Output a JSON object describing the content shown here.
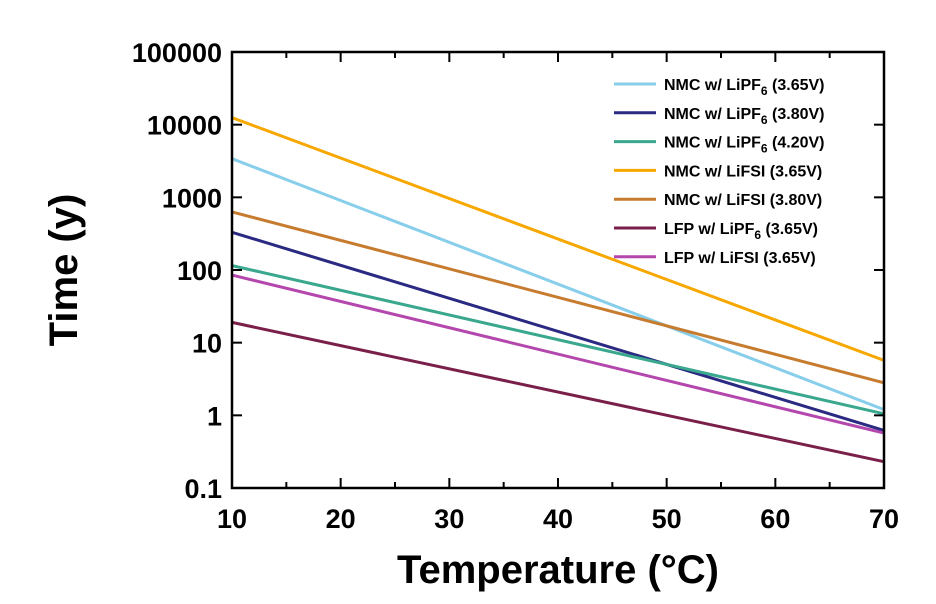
{
  "chart_data": {
    "type": "line",
    "xlabel": "Temperature (°C)",
    "ylabel": "Time (y)",
    "xlim": [
      10,
      70
    ],
    "ylim": [
      0.1,
      100000
    ],
    "yscale": "log",
    "grid": false,
    "legend_position": "top-right",
    "x_ticks": [
      "10",
      "20",
      "30",
      "40",
      "50",
      "60",
      "70"
    ],
    "y_ticks": [
      "0.1",
      "1",
      "10",
      "100",
      "1000",
      "10000",
      "100000"
    ],
    "series": [
      {
        "name": "NMC w/ LiPF6 (3.65V)",
        "label_main": "NMC w/ LiPF",
        "label_sub": "6",
        "label_tail": " (3.65V)",
        "color": "#87ceeb",
        "x": [
          10,
          70
        ],
        "y": [
          3400,
          1.2
        ]
      },
      {
        "name": "NMC w/ LiPF6 (3.80V)",
        "label_main": "NMC w/ LiPF",
        "label_sub": "6",
        "label_tail": " (3.80V)",
        "color": "#2b2a83",
        "x": [
          10,
          70
        ],
        "y": [
          330,
          0.62
        ]
      },
      {
        "name": "NMC w/ LiPF6 (4.20V)",
        "label_main": "NMC w/ LiPF",
        "label_sub": "6",
        "label_tail": " (4.20V)",
        "color": "#3aa88e",
        "x": [
          10,
          70
        ],
        "y": [
          115,
          1.05
        ]
      },
      {
        "name": "NMC w/ LiFSI (3.65V)",
        "label_main": "NMC w/ LiFSI (3.65V)",
        "label_sub": "",
        "label_tail": "",
        "color": "#f7a800",
        "x": [
          10,
          70
        ],
        "y": [
          12500,
          5.7
        ]
      },
      {
        "name": "NMC w/ LiFSI (3.80V)",
        "label_main": "NMC w/ LiFSI (3.80V)",
        "label_sub": "",
        "label_tail": "",
        "color": "#c77b2e",
        "x": [
          10,
          70
        ],
        "y": [
          630,
          2.8
        ]
      },
      {
        "name": "LFP w/ LiPF6 (3.65V)",
        "label_main": "LFP w/ LiPF",
        "label_sub": "6",
        "label_tail": " (3.65V)",
        "color": "#7a1f4a",
        "x": [
          10,
          70
        ],
        "y": [
          19,
          0.23
        ]
      },
      {
        "name": "LFP w/ LiFSI (3.65V)",
        "label_main": "LFP w/ LiFSI (3.65V)",
        "label_sub": "",
        "label_tail": "",
        "color": "#b447ad",
        "x": [
          10,
          70
        ],
        "y": [
          85,
          0.57
        ]
      }
    ]
  }
}
